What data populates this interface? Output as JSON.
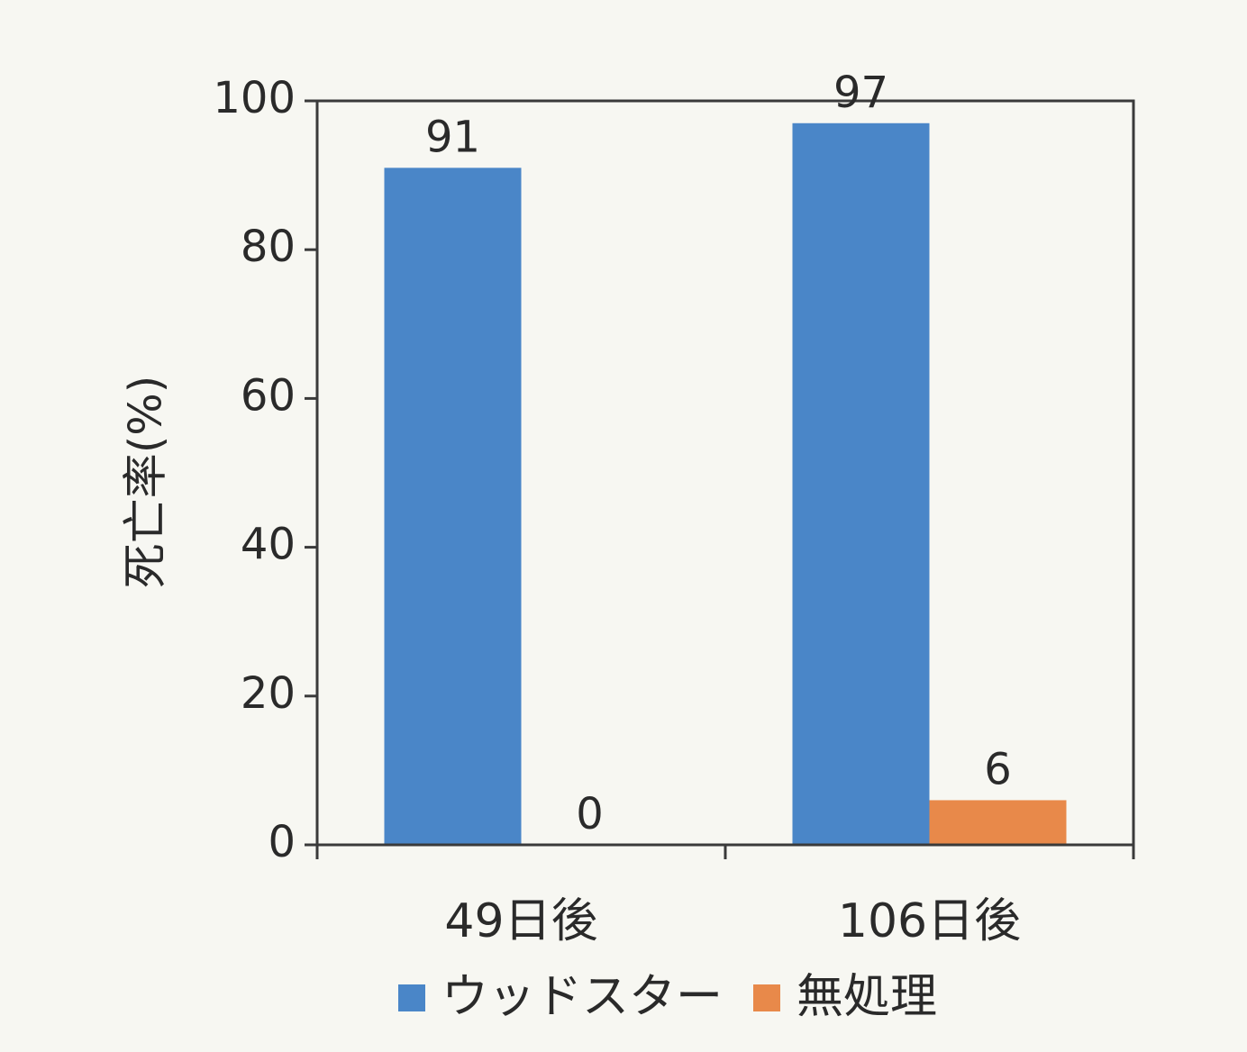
{
  "chart_data": {
    "type": "bar",
    "categories": [
      "49日後",
      "106日後"
    ],
    "series": [
      {
        "name": "ウッドスター",
        "values": [
          91,
          97
        ],
        "color": "#4a86c8"
      },
      {
        "name": "無処理",
        "values": [
          0,
          6
        ],
        "color": "#e8894a"
      }
    ],
    "ylabel": "死亡率(%)",
    "ylim": [
      0,
      100
    ],
    "yticks": [
      0,
      20,
      40,
      60,
      80,
      100
    ],
    "grid": false,
    "legend_position": "bottom",
    "data_labels": true
  }
}
